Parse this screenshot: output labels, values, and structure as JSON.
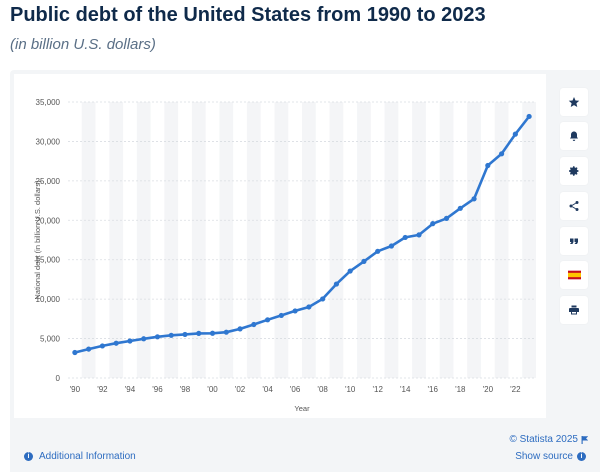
{
  "header": {
    "title": "Public debt of the United States from 1990 to 2023",
    "subtitle": "(in billion U.S. dollars)"
  },
  "toolbar": {
    "icons": [
      "star-icon",
      "bell-icon",
      "gear-icon",
      "share-icon",
      "quote-icon",
      "flag-spain-icon",
      "print-icon"
    ]
  },
  "footer": {
    "credits": "© Statista 2025",
    "additional_info": "Additional Information",
    "show_source": "Show source"
  },
  "colors": {
    "line": "#2f77d0",
    "title": "#0f2a4a",
    "link": "#2d6cc0",
    "panel": "#f3f5f7"
  },
  "chart_data": {
    "type": "line",
    "title": "",
    "xlabel": "Year",
    "ylabel": "National debt (in billion U.S. dollars)",
    "x": [
      1990,
      1991,
      1992,
      1993,
      1994,
      1995,
      1996,
      1997,
      1998,
      1999,
      2000,
      2001,
      2002,
      2003,
      2004,
      2005,
      2006,
      2007,
      2008,
      2009,
      2010,
      2011,
      2012,
      2013,
      2014,
      2015,
      2016,
      2017,
      2018,
      2019,
      2020,
      2021,
      2022,
      2023
    ],
    "series": [
      {
        "values": [
          3233,
          3665,
          4065,
          4411,
          4693,
          4974,
          5225,
          5413,
          5526,
          5656,
          5674,
          5807,
          6228,
          6783,
          7379,
          7933,
          8507,
          9008,
          10025,
          11910,
          13562,
          14790,
          16066,
          16738,
          17824,
          18151,
          19573,
          20245,
          21516,
          22719,
          26945,
          28428,
          30929,
          33167
        ]
      }
    ],
    "x_tick_labels": [
      "'90",
      "'92",
      "'94",
      "'96",
      "'98",
      "'00",
      "'02",
      "'04",
      "'06",
      "'08",
      "'10",
      "'12",
      "'14",
      "'16",
      "'18",
      "'20",
      "'22"
    ],
    "x_tick_years": [
      1990,
      1992,
      1994,
      1996,
      1998,
      2000,
      2002,
      2004,
      2006,
      2008,
      2010,
      2012,
      2014,
      2016,
      2018,
      2020,
      2022
    ],
    "y_ticks": [
      0,
      5000,
      10000,
      15000,
      20000,
      25000,
      30000,
      35000
    ],
    "y_tick_labels": [
      "0",
      "5,000",
      "10,000",
      "15,000",
      "20,000",
      "25,000",
      "30,000",
      "35,000"
    ],
    "ylim": [
      0,
      35000
    ],
    "xlim": [
      1989.5,
      2023.5
    ],
    "grid": true,
    "alternating_year_bands": true
  }
}
